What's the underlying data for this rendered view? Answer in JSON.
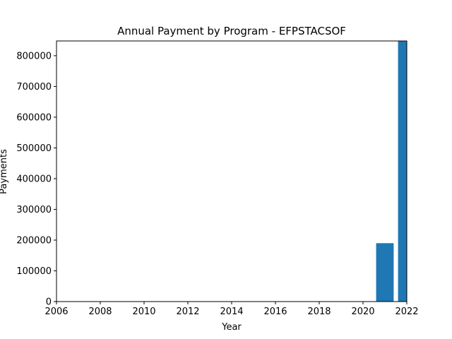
{
  "chart_data": {
    "type": "bar",
    "title": "Annual Payment by Program - EFPSTACSOF",
    "xlabel": "Year",
    "ylabel": "Payments",
    "x": [
      2021,
      2022
    ],
    "values": [
      190000,
      848000
    ],
    "xlim": [
      2006,
      2022
    ],
    "ylim": [
      0,
      848000
    ],
    "xticks": [
      2006,
      2008,
      2010,
      2012,
      2014,
      2016,
      2018,
      2020,
      2022
    ],
    "yticks": [
      0,
      100000,
      200000,
      300000,
      400000,
      500000,
      600000,
      700000,
      800000
    ],
    "bar_color": "#1f77b4",
    "grid": false,
    "legend": "none"
  }
}
